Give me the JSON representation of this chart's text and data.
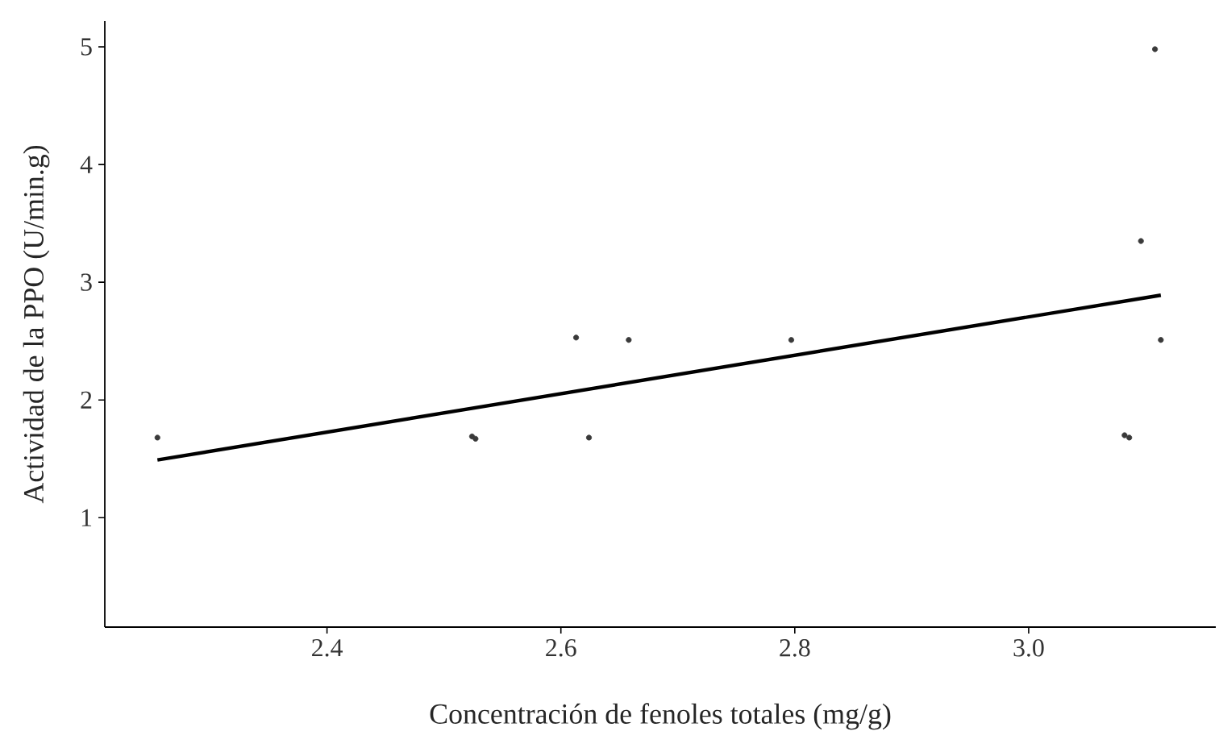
{
  "chart_data": {
    "type": "scatter",
    "xlabel": "Concentración de fenoles totales (mg/g)",
    "ylabel": "Actividad de la PPO (U/min.g)",
    "xlim": [
      2.21,
      3.16
    ],
    "ylim": [
      0.07,
      5.22
    ],
    "xticks": [
      2.4,
      2.6,
      2.8,
      {
        "value": 3.0,
        "label": "3.0"
      }
    ],
    "yticks": [
      1,
      2,
      3,
      4,
      5
    ],
    "grid": false,
    "series": [
      {
        "marker": "circle",
        "color": "#3a3a3a",
        "x": [
          2.255,
          2.524,
          2.527,
          2.613,
          2.624,
          2.658,
          2.797,
          3.082,
          3.086,
          3.096,
          3.108,
          3.113
        ],
        "values": [
          1.68,
          1.69,
          1.67,
          2.53,
          1.68,
          2.51,
          2.51,
          1.7,
          1.68,
          3.35,
          4.98,
          2.51
        ]
      },
      {
        "type": "line",
        "marker": "none",
        "color": "#000000",
        "x": [
          2.255,
          3.113
        ],
        "values": [
          1.49,
          2.89
        ]
      }
    ]
  }
}
